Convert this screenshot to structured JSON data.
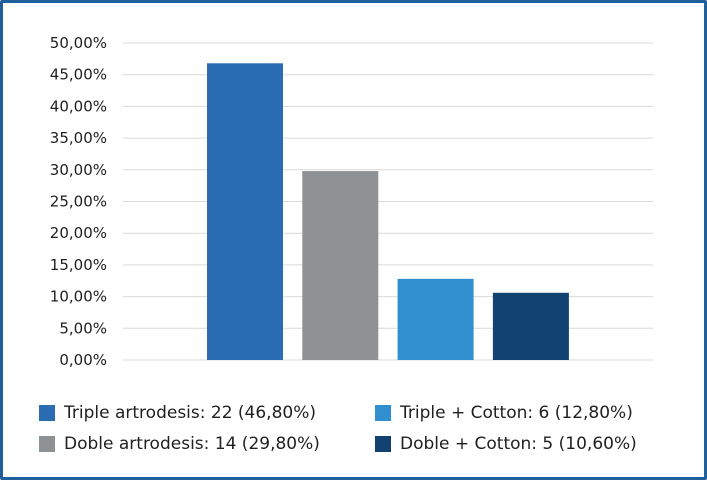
{
  "chart_data": {
    "type": "bar",
    "categories": [
      "Triple artrodesis: 22 (46,80%)",
      "Doble artrodesis: 14 (29,80%)",
      "Triple + Cotton: 6 (12,80%)",
      "Doble + Cotton: 5 (10,60%)"
    ],
    "values": [
      46.8,
      29.8,
      12.8,
      10.6
    ],
    "colors": [
      "#2a6db3",
      "#8f9294",
      "#2f8fcf",
      "#12426f"
    ],
    "ylim": [
      0,
      50
    ],
    "yticks": [
      "0,00%",
      "5,00%",
      "10,00%",
      "15,00%",
      "20,00%",
      "25,00%",
      "30,00%",
      "35,00%",
      "40,00%",
      "45,00%",
      "50,00%"
    ],
    "grid": true,
    "legend_position": "bottom",
    "title": "",
    "xlabel": "",
    "ylabel": ""
  },
  "legend": {
    "items": [
      {
        "label": "Triple artrodesis: 22 (46,80%)",
        "color": "#2a6db3"
      },
      {
        "label": "Triple + Cotton: 6 (12,80%)",
        "color": "#2f8fcf"
      },
      {
        "label": "Doble artrodesis: 14 (29,80%)",
        "color": "#8f9294"
      },
      {
        "label": "Doble + Cotton: 5 (10,60%)",
        "color": "#12426f"
      }
    ]
  },
  "colors": {
    "frame_border": "#1f5f9b",
    "gridline": "#d9d9d9",
    "text": "#1f1f1f"
  }
}
